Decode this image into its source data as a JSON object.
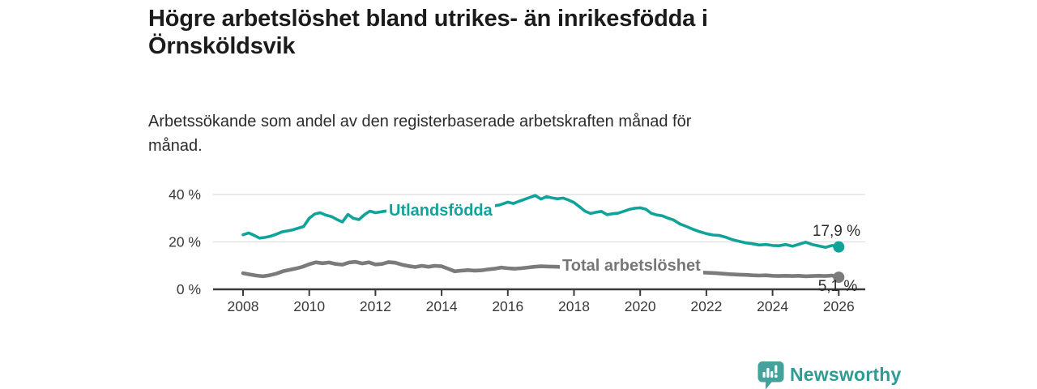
{
  "title_lines": [
    "Högre arbetslöshet bland utrikes- än inrikesfödda i",
    "Örnsköldsvik"
  ],
  "subtitle_lines": [
    "Arbetssökande som andel av den registerbaserade arbetskraften månad för",
    "månad."
  ],
  "footer": {
    "brand": "Newsworthy",
    "logo_icon": "bar-chart-speech-bubble-icon",
    "brand_color": "#2f9b95",
    "icon_color": "#44a19c"
  },
  "chart_data": {
    "type": "line",
    "title": "Högre arbetslöshet bland utrikes- än inrikesfödda i Örnsköldsvik",
    "subtitle": "Arbetssökande som andel av den registerbaserade arbetskraften månad för månad.",
    "xlabel": "",
    "ylabel": "",
    "x_range": [
      2008,
      2026
    ],
    "ylim": [
      0,
      42
    ],
    "grid": "horizontal",
    "legend_position": "inline-labels",
    "x_ticks": [
      2008,
      2010,
      2012,
      2014,
      2016,
      2018,
      2020,
      2022,
      2024,
      2026
    ],
    "y_ticks": [
      {
        "value": 0,
        "label": "0 %"
      },
      {
        "value": 20,
        "label": "20 %"
      },
      {
        "value": 40,
        "label": "40 %"
      }
    ],
    "axis_color": "#3a3a3a",
    "gridline_color": "#dedede",
    "series": [
      {
        "name": "Utlandsfödda",
        "color": "#0fa39a",
        "end_label": "17,9 %",
        "end_value": 17.9,
        "points": [
          [
            2008.0,
            23.0
          ],
          [
            2008.17,
            23.8
          ],
          [
            2008.33,
            22.8
          ],
          [
            2008.5,
            21.6
          ],
          [
            2008.67,
            21.9
          ],
          [
            2008.83,
            22.4
          ],
          [
            2009.0,
            23.2
          ],
          [
            2009.17,
            24.2
          ],
          [
            2009.33,
            24.6
          ],
          [
            2009.5,
            25.1
          ],
          [
            2009.67,
            25.8
          ],
          [
            2009.83,
            26.5
          ],
          [
            2010.0,
            30.0
          ],
          [
            2010.17,
            31.8
          ],
          [
            2010.33,
            32.3
          ],
          [
            2010.5,
            31.3
          ],
          [
            2010.67,
            30.7
          ],
          [
            2010.83,
            29.5
          ],
          [
            2011.0,
            28.4
          ],
          [
            2011.17,
            31.6
          ],
          [
            2011.33,
            30.0
          ],
          [
            2011.5,
            29.4
          ],
          [
            2011.67,
            31.5
          ],
          [
            2011.83,
            33.0
          ],
          [
            2012.0,
            32.3
          ],
          [
            2012.25,
            32.9
          ],
          [
            2012.5,
            33.3
          ],
          [
            2012.75,
            33.0
          ],
          [
            2013.0,
            33.6
          ],
          [
            2013.25,
            34.0
          ],
          [
            2013.5,
            33.5
          ],
          [
            2013.75,
            34.1
          ],
          [
            2014.0,
            34.5
          ],
          [
            2014.25,
            34.0
          ],
          [
            2014.5,
            34.6
          ],
          [
            2014.75,
            35.0
          ],
          [
            2015.0,
            34.6
          ],
          [
            2015.25,
            35.2
          ],
          [
            2015.5,
            35.0
          ],
          [
            2015.75,
            35.6
          ],
          [
            2016.0,
            36.8
          ],
          [
            2016.17,
            36.2
          ],
          [
            2016.33,
            37.1
          ],
          [
            2016.5,
            37.9
          ],
          [
            2016.67,
            38.8
          ],
          [
            2016.83,
            39.6
          ],
          [
            2017.0,
            38.1
          ],
          [
            2017.17,
            39.1
          ],
          [
            2017.33,
            38.6
          ],
          [
            2017.5,
            38.2
          ],
          [
            2017.67,
            38.5
          ],
          [
            2017.83,
            37.7
          ],
          [
            2018.0,
            36.6
          ],
          [
            2018.17,
            34.8
          ],
          [
            2018.33,
            33.0
          ],
          [
            2018.5,
            32.0
          ],
          [
            2018.67,
            32.5
          ],
          [
            2018.83,
            32.9
          ],
          [
            2019.0,
            31.5
          ],
          [
            2019.17,
            31.9
          ],
          [
            2019.33,
            32.1
          ],
          [
            2019.5,
            32.9
          ],
          [
            2019.67,
            33.7
          ],
          [
            2019.83,
            34.2
          ],
          [
            2020.0,
            34.4
          ],
          [
            2020.17,
            33.8
          ],
          [
            2020.33,
            32.1
          ],
          [
            2020.5,
            31.4
          ],
          [
            2020.67,
            31.0
          ],
          [
            2020.83,
            30.1
          ],
          [
            2021.0,
            29.3
          ],
          [
            2021.2,
            27.6
          ],
          [
            2021.4,
            26.5
          ],
          [
            2021.6,
            25.3
          ],
          [
            2021.8,
            24.3
          ],
          [
            2022.0,
            23.5
          ],
          [
            2022.2,
            22.9
          ],
          [
            2022.4,
            22.7
          ],
          [
            2022.6,
            21.9
          ],
          [
            2022.8,
            20.9
          ],
          [
            2023.0,
            20.2
          ],
          [
            2023.2,
            19.6
          ],
          [
            2023.4,
            19.2
          ],
          [
            2023.6,
            18.7
          ],
          [
            2023.8,
            18.9
          ],
          [
            2024.0,
            18.5
          ],
          [
            2024.2,
            18.4
          ],
          [
            2024.4,
            18.9
          ],
          [
            2024.6,
            18.2
          ],
          [
            2024.8,
            19.0
          ],
          [
            2025.0,
            19.9
          ],
          [
            2025.2,
            18.9
          ],
          [
            2025.4,
            18.3
          ],
          [
            2025.6,
            17.7
          ],
          [
            2025.8,
            18.5
          ],
          [
            2026.0,
            17.9
          ]
        ]
      },
      {
        "name": "Total arbetslöshet",
        "color": "#7b7b7b",
        "end_label": "5,1 %",
        "end_value": 5.1,
        "points": [
          [
            2008.0,
            6.8
          ],
          [
            2008.2,
            6.3
          ],
          [
            2008.4,
            5.8
          ],
          [
            2008.6,
            5.5
          ],
          [
            2008.8,
            5.9
          ],
          [
            2009.0,
            6.6
          ],
          [
            2009.2,
            7.6
          ],
          [
            2009.4,
            8.2
          ],
          [
            2009.6,
            8.8
          ],
          [
            2009.8,
            9.5
          ],
          [
            2010.0,
            10.6
          ],
          [
            2010.2,
            11.4
          ],
          [
            2010.4,
            11.0
          ],
          [
            2010.6,
            11.3
          ],
          [
            2010.8,
            10.7
          ],
          [
            2011.0,
            10.4
          ],
          [
            2011.2,
            11.3
          ],
          [
            2011.4,
            11.6
          ],
          [
            2011.6,
            10.9
          ],
          [
            2011.8,
            11.4
          ],
          [
            2012.0,
            10.5
          ],
          [
            2012.2,
            10.7
          ],
          [
            2012.4,
            11.5
          ],
          [
            2012.6,
            11.2
          ],
          [
            2012.8,
            10.4
          ],
          [
            2013.0,
            9.8
          ],
          [
            2013.2,
            9.4
          ],
          [
            2013.4,
            9.9
          ],
          [
            2013.6,
            9.5
          ],
          [
            2013.8,
            9.9
          ],
          [
            2014.0,
            9.7
          ],
          [
            2014.2,
            8.7
          ],
          [
            2014.4,
            7.6
          ],
          [
            2014.6,
            7.9
          ],
          [
            2014.8,
            8.1
          ],
          [
            2015.0,
            7.9
          ],
          [
            2015.2,
            8.0
          ],
          [
            2015.4,
            8.4
          ],
          [
            2015.6,
            8.7
          ],
          [
            2015.8,
            9.2
          ],
          [
            2016.0,
            8.9
          ],
          [
            2016.2,
            8.7
          ],
          [
            2016.4,
            8.9
          ],
          [
            2016.6,
            9.2
          ],
          [
            2016.8,
            9.5
          ],
          [
            2017.0,
            9.7
          ],
          [
            2017.25,
            9.6
          ],
          [
            2017.5,
            9.5
          ],
          [
            2018.0,
            9.0
          ],
          [
            2018.5,
            8.6
          ],
          [
            2019.0,
            8.2
          ],
          [
            2019.5,
            8.0
          ],
          [
            2020.0,
            8.6
          ],
          [
            2020.5,
            8.3
          ],
          [
            2021.0,
            7.8
          ],
          [
            2021.5,
            7.3
          ],
          [
            2022.0,
            7.0
          ],
          [
            2022.3,
            6.8
          ],
          [
            2022.5,
            6.6
          ],
          [
            2022.7,
            6.4
          ],
          [
            2023.0,
            6.2
          ],
          [
            2023.2,
            6.1
          ],
          [
            2023.4,
            5.9
          ],
          [
            2023.6,
            5.8
          ],
          [
            2023.8,
            5.9
          ],
          [
            2024.0,
            5.7
          ],
          [
            2024.2,
            5.6
          ],
          [
            2024.4,
            5.7
          ],
          [
            2024.6,
            5.6
          ],
          [
            2024.8,
            5.7
          ],
          [
            2025.0,
            5.5
          ],
          [
            2025.2,
            5.6
          ],
          [
            2025.4,
            5.7
          ],
          [
            2025.6,
            5.6
          ],
          [
            2025.8,
            5.8
          ],
          [
            2026.0,
            5.1
          ]
        ]
      }
    ]
  }
}
